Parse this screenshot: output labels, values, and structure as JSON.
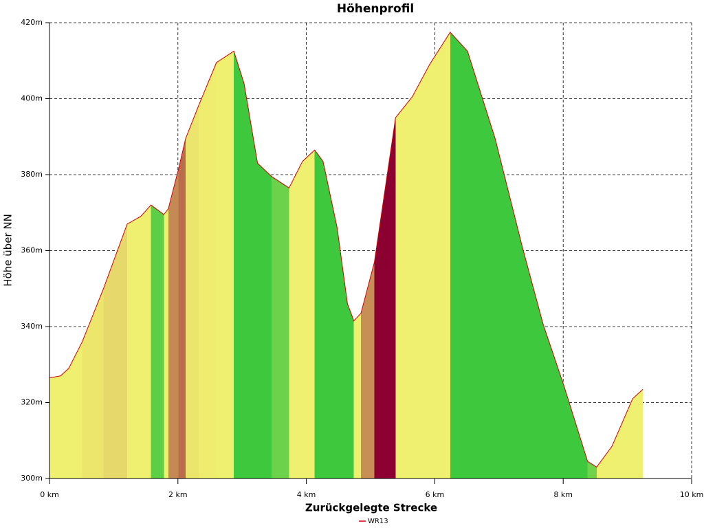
{
  "chart_data": {
    "type": "area",
    "title": "Höhenprofil",
    "x_label": "Zurückgelegte Strecke",
    "y_label": "Höhe über NN",
    "series": [
      {
        "name": "WR13",
        "color": "#d00000",
        "x": [
          0,
          0.17,
          0.3,
          0.51,
          0.84,
          1.21,
          1.42,
          1.58,
          1.78,
          1.85,
          2.01,
          2.12,
          2.33,
          2.6,
          2.87,
          3.03,
          3.24,
          3.46,
          3.73,
          3.94,
          4.13,
          4.26,
          4.48,
          4.64,
          4.74,
          4.85,
          5.06,
          5.39,
          5.65,
          5.92,
          6.24,
          6.51,
          6.94,
          7.37,
          7.69,
          8.01,
          8.38,
          8.52,
          8.76,
          9.08,
          9.24
        ],
        "values": [
          326.5,
          327,
          329,
          336,
          350,
          367,
          369,
          372,
          369.5,
          371,
          381.5,
          389.5,
          398.5,
          409.5,
          412.5,
          404,
          383,
          379.5,
          376.5,
          383.5,
          386.5,
          383.5,
          366,
          346,
          341.5,
          343.5,
          357,
          395,
          400.5,
          409,
          417.5,
          412.5,
          389.5,
          360.5,
          340.5,
          324.5,
          304.5,
          303,
          308.5,
          321,
          323.5
        ]
      }
    ],
    "fill_colors": [
      "#3ec83e",
      "#f0f070",
      "#8b0030"
    ],
    "xlim": [
      0,
      10
    ],
    "xticks": [
      {
        "value": 0,
        "label": "0 km"
      },
      {
        "value": 2,
        "label": "2 km"
      },
      {
        "value": 4,
        "label": "4 km"
      },
      {
        "value": 6,
        "label": "6 km"
      },
      {
        "value": 8,
        "label": "8 km"
      },
      {
        "value": 10,
        "label": "10 km"
      }
    ],
    "ylim": [
      300,
      420
    ],
    "yticks": [
      {
        "value": 300,
        "label": "300m"
      },
      {
        "value": 320,
        "label": "320m"
      },
      {
        "value": 340,
        "label": "340m"
      },
      {
        "value": 360,
        "label": "360m"
      },
      {
        "value": 380,
        "label": "380m"
      },
      {
        "value": 400,
        "label": "400m"
      },
      {
        "value": 420,
        "label": "420m"
      }
    ],
    "grid": true,
    "legend": "bottom"
  }
}
